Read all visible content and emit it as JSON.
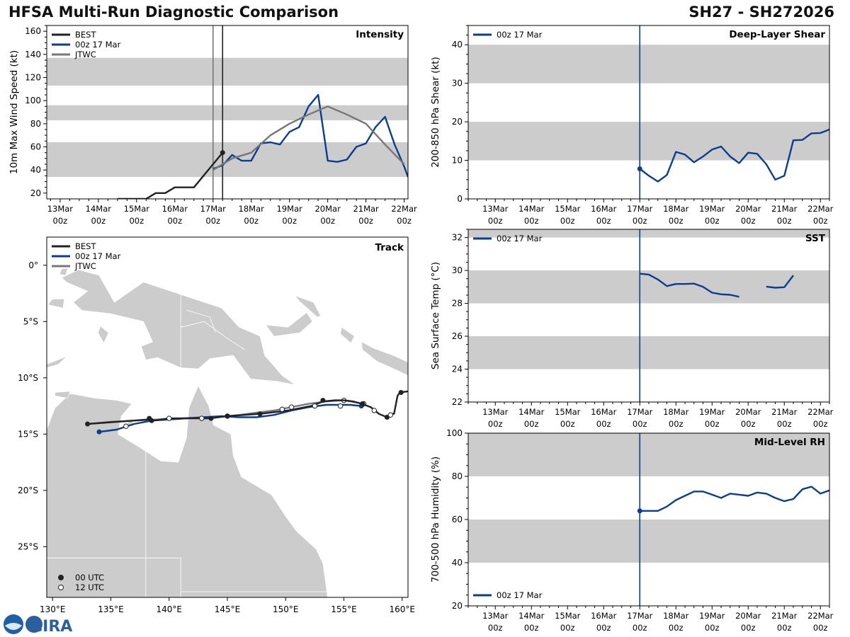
{
  "header": {
    "title": "HFSA Multi-Run Diagnostic Comparison",
    "storm": "SH27 - SH272026"
  },
  "logo_text": "CIRA",
  "colors": {
    "best": "#222222",
    "run": "#0b3d91",
    "jtwc": "#777777",
    "band": "#cccccc",
    "land": "#cccccc"
  },
  "time_ticks": [
    {
      "day": "13Mar",
      "hour": "00z"
    },
    {
      "day": "14Mar",
      "hour": "00z"
    },
    {
      "day": "15Mar",
      "hour": "00z"
    },
    {
      "day": "16Mar",
      "hour": "00z"
    },
    {
      "day": "17Mar",
      "hour": "00z"
    },
    {
      "day": "18Mar",
      "hour": "00z"
    },
    {
      "day": "19Mar",
      "hour": "00z"
    },
    {
      "day": "20Mar",
      "hour": "00z"
    },
    {
      "day": "21Mar",
      "hour": "00z"
    },
    {
      "day": "22Mar",
      "hour": "00z"
    }
  ],
  "chart_data": [
    {
      "type": "line",
      "id": "intensity",
      "title": "Intensity",
      "ylabel": "10m Max Wind Speed (kt)",
      "x_units": "days since 13Mar 00z",
      "xlim": [
        -0.35,
        9.1
      ],
      "ylim": [
        15,
        165
      ],
      "yticks": [
        20,
        40,
        60,
        80,
        100,
        120,
        140,
        160
      ],
      "bands": [
        [
          34,
          64
        ],
        [
          83,
          96
        ],
        [
          113,
          137
        ]
      ],
      "vlines": [
        {
          "x": 4.0,
          "color": "#777777"
        },
        {
          "x": 4.25,
          "color": "#222222"
        }
      ],
      "legend": [
        "BEST",
        "00z 17 Mar",
        "JTWC"
      ],
      "series": [
        {
          "name": "BEST",
          "x": [
            1.5,
            1.75,
            2.0,
            2.25,
            2.5,
            2.75,
            3.0,
            3.25,
            3.5,
            3.75,
            4.0,
            4.25
          ],
          "y": [
            15,
            15,
            15,
            15,
            20,
            20,
            25,
            25,
            25,
            35,
            45,
            55
          ],
          "end_marker": true
        },
        {
          "name": "00z 17 Mar",
          "x": [
            4.0,
            4.25,
            4.5,
            4.75,
            5.0,
            5.25,
            5.5,
            5.75,
            6.0,
            6.25,
            6.5,
            6.75,
            7.0,
            7.25,
            7.5,
            7.75,
            8.0,
            8.25,
            8.5,
            8.75,
            9.0,
            9.1
          ],
          "y": [
            41,
            44,
            53,
            48,
            48,
            63,
            64,
            62,
            73,
            77,
            95,
            105,
            48,
            47,
            49,
            60,
            63,
            77,
            86,
            62,
            43,
            34
          ]
        },
        {
          "name": "JTWC",
          "x": [
            4.0,
            4.5,
            5.0,
            5.5,
            6.0,
            6.5,
            7.0,
            7.5,
            8.0,
            8.5,
            9.0
          ],
          "y": [
            40,
            50,
            55,
            70,
            80,
            88,
            95,
            88,
            80,
            62,
            45
          ]
        }
      ]
    },
    {
      "type": "line",
      "id": "shear",
      "title": "Deep-Layer Shear",
      "ylabel": "200-850 hPa Shear (kt)",
      "x_units": "days since 13Mar 00z",
      "xlim": [
        -0.75,
        9.25
      ],
      "ylim": [
        0,
        45
      ],
      "yticks": [
        0,
        10,
        20,
        30,
        40
      ],
      "bands": [
        [
          10,
          20
        ],
        [
          30,
          40
        ]
      ],
      "vlines": [
        {
          "x": 4.0,
          "color": "#0b3d91"
        }
      ],
      "legend": [
        "00z 17 Mar"
      ],
      "series": [
        {
          "name": "00z 17 Mar",
          "start_marker": true,
          "x": [
            4.0,
            4.25,
            4.5,
            4.75,
            5.0,
            5.25,
            5.5,
            5.75,
            6.0,
            6.25,
            6.5,
            6.75,
            7.0,
            7.25,
            7.5,
            7.75,
            8.0,
            8.25,
            8.5,
            8.75,
            9.0,
            9.25
          ],
          "y": [
            7.8,
            6.0,
            4.5,
            6.2,
            12.2,
            11.5,
            9.5,
            11.0,
            12.8,
            13.6,
            11.0,
            9.3,
            12.0,
            11.7,
            9.0,
            5.0,
            6.0,
            15.2,
            15.3,
            17.0,
            17.1,
            18.0
          ]
        }
      ]
    },
    {
      "type": "line",
      "id": "sst",
      "title": "SST",
      "ylabel": "Sea Surface Temp (°C)",
      "x_units": "days since 13Mar 00z",
      "xlim": [
        -0.75,
        9.25
      ],
      "ylim": [
        22,
        32.5
      ],
      "yticks": [
        22,
        24,
        26,
        28,
        30,
        32
      ],
      "bands": [
        [
          24,
          26
        ],
        [
          28,
          30
        ],
        [
          32,
          34
        ]
      ],
      "vlines": [
        {
          "x": 4.0,
          "color": "#0b3d91"
        }
      ],
      "legend": [
        "00z 17 Mar"
      ],
      "series": [
        {
          "name": "00z 17 Mar",
          "x": [
            4.0,
            4.25,
            4.5,
            4.75,
            5.0,
            5.25,
            5.5,
            5.75,
            6.0,
            6.25,
            6.5,
            6.75
          ],
          "y": [
            29.8,
            29.75,
            29.45,
            29.05,
            29.18,
            29.18,
            29.2,
            29.0,
            28.65,
            28.55,
            28.52,
            28.4
          ]
        },
        {
          "name": "00z 17 Mar (cont.)",
          "x": [
            7.5,
            7.75,
            8.0,
            8.25
          ],
          "y": [
            29.02,
            28.95,
            28.98,
            29.7
          ]
        }
      ]
    },
    {
      "type": "line",
      "id": "rh",
      "title": "Mid-Level RH",
      "ylabel": "700-500 hPa Humidity (%)",
      "x_units": "days since 13Mar 00z",
      "xlim": [
        -0.75,
        9.25
      ],
      "ylim": [
        20,
        100
      ],
      "yticks": [
        20,
        40,
        60,
        80,
        100
      ],
      "bands": [
        [
          40,
          60
        ],
        [
          80,
          100
        ]
      ],
      "vlines": [
        {
          "x": 4.0,
          "color": "#0b3d91"
        }
      ],
      "legend": [
        "00z 17 Mar"
      ],
      "series": [
        {
          "name": "00z 17 Mar",
          "start_marker": true,
          "x": [
            4.0,
            4.25,
            4.5,
            4.75,
            5.0,
            5.25,
            5.5,
            5.75,
            6.0,
            6.25,
            6.5,
            6.75,
            7.0,
            7.25,
            7.5,
            7.75,
            8.0,
            8.25,
            8.5,
            8.75,
            9.0,
            9.25
          ],
          "y": [
            64,
            64,
            64,
            66,
            69,
            71,
            73,
            73,
            71.5,
            70,
            72,
            71.5,
            71,
            72.5,
            72,
            70,
            68.5,
            69.5,
            74,
            75.2,
            72,
            73.5
          ]
        }
      ]
    },
    {
      "type": "scatter",
      "id": "track",
      "title": "Track",
      "xlabel_ticks": [
        "130°E",
        "135°E",
        "140°E",
        "145°E",
        "150°E",
        "155°E",
        "160°E"
      ],
      "ylabel_ticks": [
        "0°",
        "5°S",
        "10°S",
        "15°S",
        "20°S",
        "25°S"
      ],
      "lon_ticks": [
        130,
        135,
        140,
        145,
        150,
        155,
        160
      ],
      "lat_ticks": [
        0,
        -5,
        -10,
        -15,
        -20,
        -25
      ],
      "xlim": [
        129.5,
        160.5
      ],
      "ylim": [
        -29.5,
        2.5
      ],
      "legend": [
        "BEST",
        "00z 17 Mar",
        "JTWC"
      ],
      "marker_legend": [
        "00 UTC",
        "12 UTC"
      ],
      "series": [
        {
          "name": "BEST",
          "lon": [
            160.5,
            159.8,
            159.6,
            159.3,
            159.0,
            158.7,
            158.0,
            157.3,
            156.5,
            155.8,
            155.0,
            154.2,
            153.2,
            152.2,
            150.2,
            147.8,
            145.0,
            143.5,
            142.8,
            140.0,
            138.6,
            138.2,
            133.0
          ],
          "lat": [
            -11.2,
            -11.3,
            -11.6,
            -13.2,
            -13.2,
            -13.5,
            -13.2,
            -12.6,
            -12.3,
            -12.1,
            -12.0,
            -12.0,
            -12.1,
            -12.5,
            -12.9,
            -13.2,
            -13.4,
            -13.6,
            -13.6,
            -13.6,
            -13.8,
            -13.7,
            -14.1
          ],
          "open": [
            [
              157.6,
              -12.9
            ],
            [
              159.0,
              -13.3
            ],
            [
              152.5,
              -12.5
            ],
            [
              149.7,
              -12.8
            ],
            [
              142.8,
              -13.6
            ],
            [
              140.0,
              -13.6
            ]
          ],
          "filled": [
            [
              159.9,
              -11.3
            ],
            [
              158.7,
              -13.5
            ],
            [
              156.6,
              -12.3
            ],
            [
              153.2,
              -12.0
            ],
            [
              147.8,
              -13.2
            ],
            [
              145.0,
              -13.4
            ],
            [
              143.6,
              -13.6
            ],
            [
              138.5,
              -13.8
            ],
            [
              138.3,
              -13.6
            ],
            [
              133.0,
              -14.1
            ]
          ]
        },
        {
          "name": "00z 17 Mar",
          "lon": [
            156.5,
            155.5,
            154.5,
            153.5,
            152.0,
            150.5,
            149.0,
            147.5,
            146.0,
            144.5,
            143.0,
            141.5,
            140.0,
            138.5,
            137.0,
            135.5,
            134.0
          ],
          "lat": [
            -12.5,
            -12.4,
            -12.4,
            -12.4,
            -12.6,
            -12.9,
            -13.3,
            -13.5,
            -13.5,
            -13.4,
            -13.5,
            -13.6,
            -13.7,
            -13.8,
            -14.1,
            -14.6,
            -14.8
          ],
          "filled": [
            [
              156.5,
              -12.5
            ],
            [
              134.0,
              -14.8
            ]
          ],
          "open": [
            [
              154.7,
              -12.5
            ],
            [
              150.5,
              -12.6
            ],
            [
              145.0,
              -13.4
            ],
            [
              136.3,
              -14.3
            ]
          ]
        },
        {
          "name": "JTWC",
          "lon": [
            156.7,
            155.0,
            153.5,
            152.0,
            150.5,
            149.0,
            147.5,
            146.0,
            145.0,
            143.0,
            141.0,
            139.0,
            137.0,
            135.0,
            133.0
          ],
          "lat": [
            -12.3,
            -12.0,
            -12.1,
            -12.3,
            -12.6,
            -12.9,
            -13.1,
            -13.3,
            -13.4,
            -13.5,
            -13.6,
            -13.7,
            -13.8,
            -13.9,
            -14.1
          ],
          "open": [
            [
              155.0,
              -12.0
            ],
            [
              156.7,
              -12.3
            ]
          ]
        }
      ]
    }
  ]
}
